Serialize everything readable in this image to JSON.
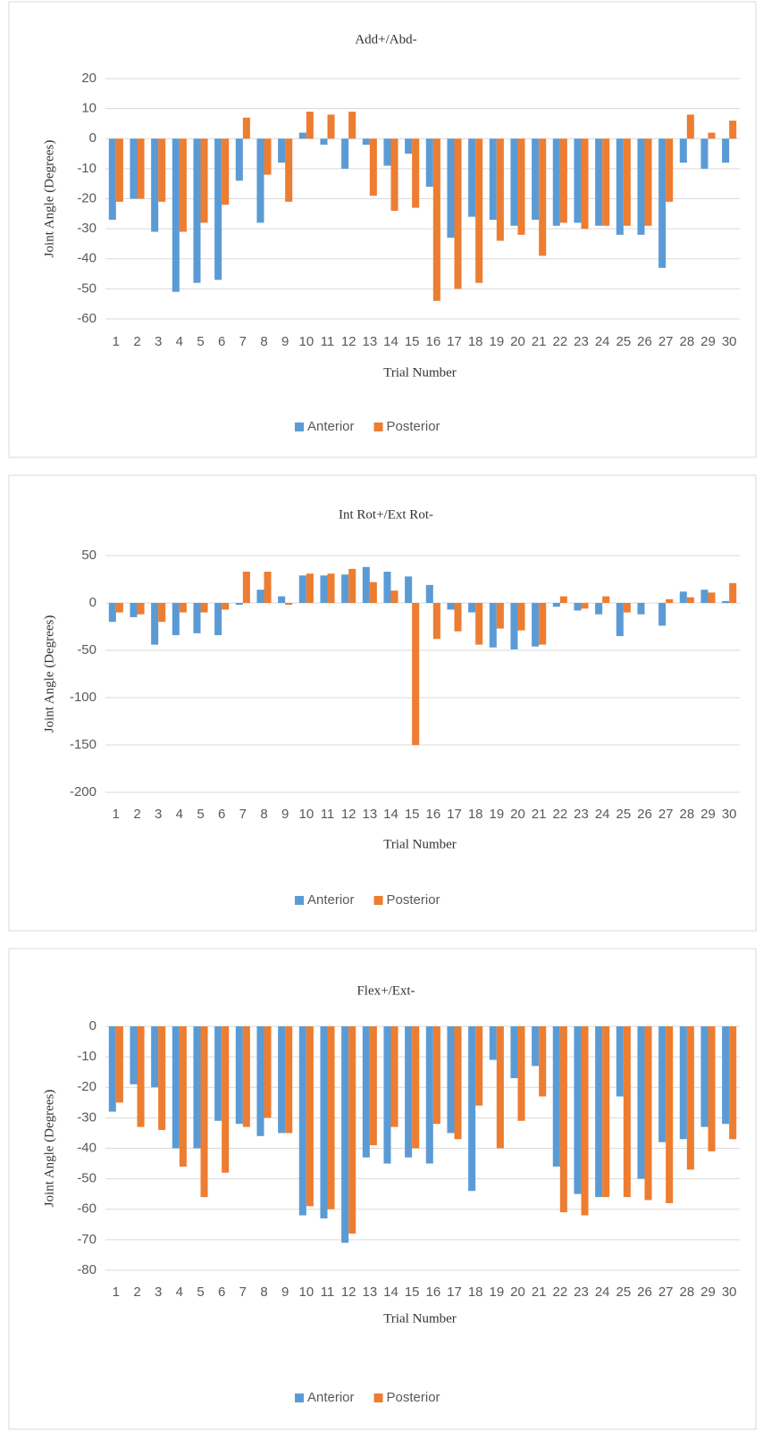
{
  "chart_data": [
    {
      "type": "bar",
      "title": "Add+/Abd-",
      "x_label": "Trial Number",
      "y_label": "Joint Angle (Degrees)",
      "grid": true,
      "legend": "bottom",
      "categories": [
        "1",
        "2",
        "3",
        "4",
        "5",
        "6",
        "7",
        "8",
        "9",
        "10",
        "11",
        "12",
        "13",
        "14",
        "15",
        "16",
        "17",
        "18",
        "19",
        "20",
        "21",
        "22",
        "23",
        "24",
        "25",
        "26",
        "27",
        "28",
        "29",
        "30"
      ],
      "ylim": [
        -60,
        20
      ],
      "yticks": [
        -60,
        -50,
        -40,
        -30,
        -20,
        -10,
        0,
        10,
        20
      ],
      "series": [
        {
          "name": "Anterior",
          "color": "#5b9bd5",
          "values": [
            -27,
            -20,
            -31,
            -51,
            -48,
            -47,
            -14,
            -28,
            -8,
            2,
            -2,
            -10,
            -2,
            -9,
            -5,
            -16,
            -33,
            -26,
            -27,
            -29,
            -27,
            -29,
            -28,
            -29,
            -32,
            -32,
            -43,
            -8,
            -10,
            -8
          ]
        },
        {
          "name": "Posterior",
          "color": "#ed7d31",
          "values": [
            -21,
            -20,
            -21,
            -31,
            -28,
            -22,
            7,
            -12,
            -21,
            9,
            8,
            9,
            -19,
            -24,
            -23,
            -54,
            -50,
            -48,
            -34,
            -32,
            -39,
            -28,
            -30,
            -29,
            -29,
            -29,
            -21,
            8,
            2,
            6
          ]
        }
      ]
    },
    {
      "type": "bar",
      "title": "Int Rot+/Ext Rot-",
      "x_label": "Trial Number",
      "y_label": "Joint Angle (Degrees)",
      "grid": true,
      "legend": "bottom",
      "categories": [
        "1",
        "2",
        "3",
        "4",
        "5",
        "6",
        "7",
        "8",
        "9",
        "10",
        "11",
        "12",
        "13",
        "14",
        "15",
        "16",
        "17",
        "18",
        "19",
        "20",
        "21",
        "22",
        "23",
        "24",
        "25",
        "26",
        "27",
        "28",
        "29",
        "30"
      ],
      "ylim": [
        -200,
        50
      ],
      "yticks": [
        -200,
        -150,
        -100,
        -50,
        0,
        50
      ],
      "series": [
        {
          "name": "Anterior",
          "color": "#5b9bd5",
          "values": [
            -20,
            -15,
            -44,
            -34,
            -32,
            -34,
            -2,
            14,
            7,
            29,
            29,
            30,
            38,
            33,
            28,
            19,
            -7,
            -10,
            -47,
            -49,
            -46,
            -4,
            -8,
            -12,
            -35,
            -12,
            -24,
            12,
            14,
            2
          ]
        },
        {
          "name": "Posterior",
          "color": "#ed7d31",
          "values": [
            -10,
            -12,
            -20,
            -10,
            -10,
            -7,
            33,
            33,
            -2,
            31,
            31,
            36,
            22,
            13,
            -150,
            -38,
            -30,
            -44,
            -27,
            -29,
            -44,
            7,
            -6,
            7,
            -10,
            0,
            4,
            6,
            11,
            21
          ]
        }
      ]
    },
    {
      "type": "bar",
      "title": "Flex+/Ext-",
      "x_label": "Trial Number",
      "y_label": "Joint Angle (Degrees)",
      "grid": true,
      "legend": "bottom",
      "categories": [
        "1",
        "2",
        "3",
        "4",
        "5",
        "6",
        "7",
        "8",
        "9",
        "10",
        "11",
        "12",
        "13",
        "14",
        "15",
        "16",
        "17",
        "18",
        "19",
        "20",
        "21",
        "22",
        "23",
        "24",
        "25",
        "26",
        "27",
        "28",
        "29",
        "30"
      ],
      "ylim": [
        -80,
        0
      ],
      "yticks": [
        -80,
        -70,
        -60,
        -50,
        -40,
        -30,
        -20,
        -10,
        0
      ],
      "series": [
        {
          "name": "Anterior",
          "color": "#5b9bd5",
          "values": [
            -28,
            -19,
            -20,
            -40,
            -40,
            -31,
            -32,
            -36,
            -35,
            -62,
            -63,
            -71,
            -43,
            -45,
            -43,
            -45,
            -35,
            -54,
            -11,
            -17,
            -13,
            -46,
            -55,
            -56,
            -23,
            -50,
            -38,
            -37,
            -33,
            -32
          ]
        },
        {
          "name": "Posterior",
          "color": "#ed7d31",
          "values": [
            -25,
            -33,
            -34,
            -46,
            -56,
            -48,
            -33,
            -30,
            -35,
            -59,
            -60,
            -68,
            -39,
            -33,
            -40,
            -32,
            -37,
            -26,
            -40,
            -31,
            -23,
            -61,
            -62,
            -56,
            -56,
            -57,
            -58,
            -47,
            -41,
            -37
          ]
        }
      ]
    }
  ]
}
